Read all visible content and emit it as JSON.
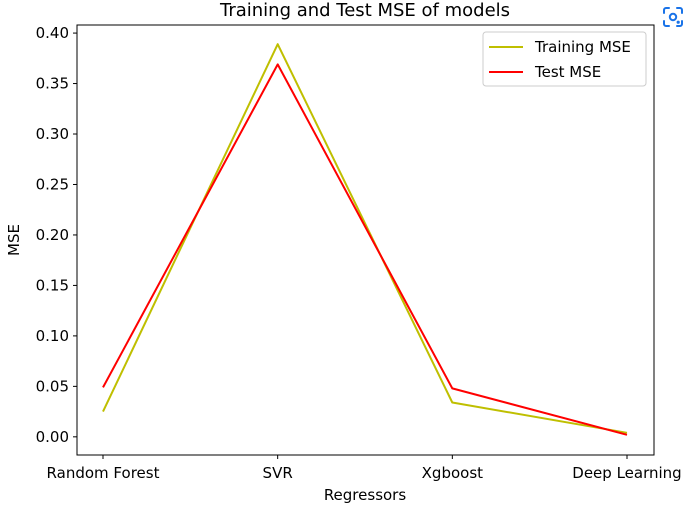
{
  "chart_data": {
    "type": "line",
    "title": "Training and Test MSE of models",
    "xlabel": "Regressors",
    "ylabel": "MSE",
    "categories": [
      "Random Forest",
      "SVR",
      "Xgboost",
      "Deep Learning"
    ],
    "series": [
      {
        "name": "Training MSE",
        "color": "#bfbf00",
        "values": [
          0.025,
          0.389,
          0.034,
          0.004
        ]
      },
      {
        "name": "Test MSE",
        "color": "#ff0000",
        "values": [
          0.049,
          0.369,
          0.048,
          0.002
        ]
      }
    ],
    "ylim": [
      -0.018,
      0.408
    ],
    "yticks": [
      "0.00",
      "0.05",
      "0.10",
      "0.15",
      "0.20",
      "0.25",
      "0.30",
      "0.35",
      "0.40"
    ],
    "grid": false,
    "legend_position": "top-right"
  },
  "lens_icon": "visual-search-icon"
}
